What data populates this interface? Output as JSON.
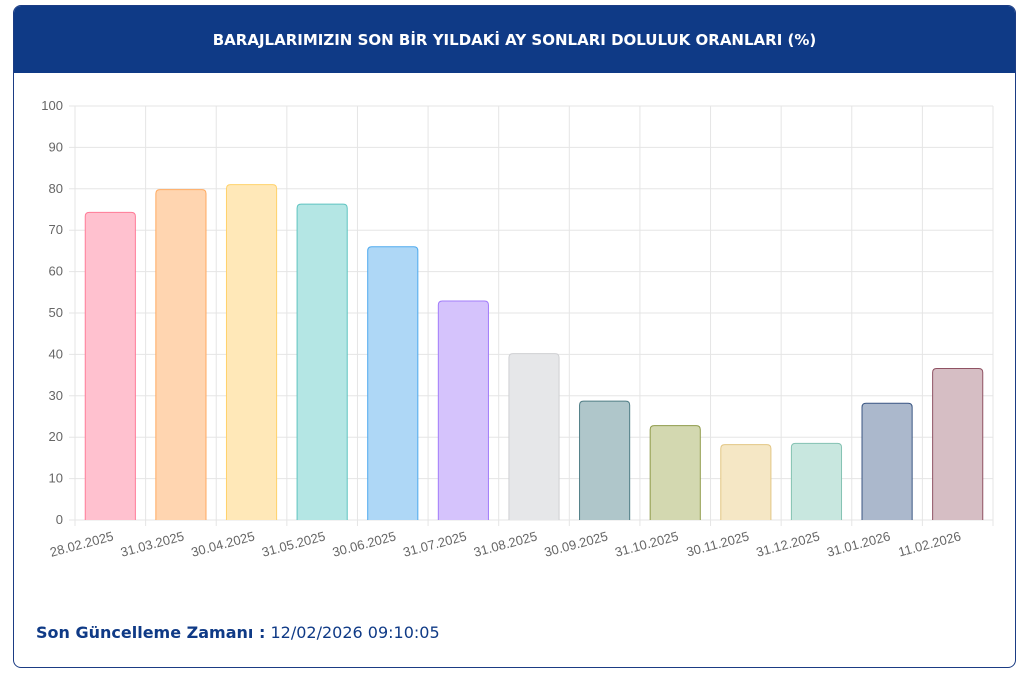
{
  "chart_data": {
    "type": "bar",
    "title": "BARAJLARIMIZIN SON BİR YILDAKİ AY SONLARI DOLULUK ORANLARI (%)",
    "categories": [
      "28.02.2025",
      "31.03.2025",
      "30.04.2025",
      "31.05.2025",
      "30.06.2025",
      "31.07.2025",
      "31.08.2025",
      "30.09.2025",
      "31.10.2025",
      "30.11.2025",
      "31.12.2025",
      "31.01.2026",
      "11.02.2026"
    ],
    "values": [
      74.3,
      79.8,
      81.0,
      76.3,
      66.0,
      52.9,
      40.2,
      28.7,
      22.8,
      18.2,
      18.5,
      28.2,
      36.6
    ],
    "colors": [
      "#ffc1cf",
      "#ffd5b0",
      "#ffe8b8",
      "#b4e6e4",
      "#aed7f6",
      "#d5c3fc",
      "#e6e7e9",
      "#afc6ca",
      "#d3d8b0",
      "#f5e7c5",
      "#c8e7df",
      "#abb8cc",
      "#d6bec4"
    ],
    "border_colors": [
      "#ff7b97",
      "#ffaa60",
      "#ffd26b",
      "#5ec4c0",
      "#4eaaee",
      "#a27cfa",
      "#cfd0d3",
      "#4f7d85",
      "#8f9b4a",
      "#e3c684",
      "#84c2b2",
      "#3a5683",
      "#8f5263"
    ],
    "ylim": [
      0,
      100
    ],
    "yticks": [
      0,
      10,
      20,
      30,
      40,
      50,
      60,
      70,
      80,
      90,
      100
    ],
    "grid": true
  },
  "footer": {
    "label": "Son Güncelleme Zamanı :",
    "value": "12/02/2026 09:10:05"
  }
}
